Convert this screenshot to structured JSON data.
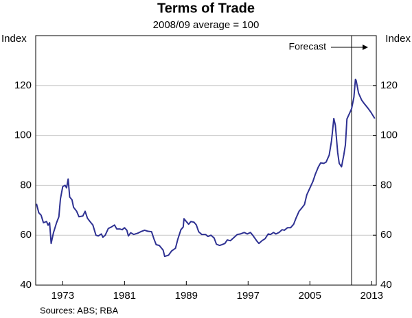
{
  "chart_data": {
    "type": "line",
    "title": "Terms of Trade",
    "subtitle": "2008/09 average = 100",
    "y_label": "Index",
    "y2_label": "Index",
    "source": "Sources: ABS; RBA",
    "annotation": "Forecast",
    "forecast_x": 2010.4,
    "xlim": [
      1969.5,
      2013.6
    ],
    "xticks": [
      1973,
      1981,
      1989,
      1997,
      2005,
      2013
    ],
    "ylim": [
      40,
      140
    ],
    "yticks": [
      40,
      60,
      80,
      100,
      120
    ],
    "y2lim": [
      40,
      140
    ],
    "y2ticks": [
      40,
      60,
      80,
      100,
      120
    ],
    "grid": true,
    "x": [
      1969.6,
      1969.9,
      1970.2,
      1970.5,
      1970.9,
      1971.1,
      1971.3,
      1971.5,
      1971.8,
      1972.2,
      1972.5,
      1972.7,
      1973.0,
      1973.3,
      1973.5,
      1973.7,
      1973.9,
      1974.2,
      1974.4,
      1974.8,
      1975.1,
      1975.6,
      1975.9,
      1976.2,
      1976.6,
      1976.9,
      1977.3,
      1977.6,
      1978.0,
      1978.2,
      1978.5,
      1978.9,
      1979.3,
      1979.7,
      1980.0,
      1980.4,
      1980.7,
      1981.0,
      1981.3,
      1981.5,
      1981.8,
      1982.2,
      1982.7,
      1983.1,
      1983.6,
      1984.0,
      1984.5,
      1984.8,
      1985.1,
      1985.5,
      1986.0,
      1986.2,
      1986.7,
      1987.1,
      1987.6,
      1987.9,
      1988.3,
      1988.6,
      1988.7,
      1989.0,
      1989.3,
      1989.6,
      1990.0,
      1990.3,
      1990.6,
      1991.0,
      1991.5,
      1991.8,
      1992.2,
      1992.6,
      1992.9,
      1993.3,
      1993.6,
      1994.0,
      1994.3,
      1994.7,
      1995.1,
      1995.6,
      1996.0,
      1996.5,
      1996.9,
      1997.3,
      1997.6,
      1998.1,
      1998.4,
      1998.8,
      1999.2,
      1999.6,
      1999.9,
      2000.3,
      2000.6,
      2001.0,
      2001.4,
      2001.7,
      2002.1,
      2002.5,
      2002.9,
      2003.2,
      2003.6,
      2003.9,
      2004.3,
      2004.6,
      2005.0,
      2005.4,
      2005.7,
      2006.1,
      2006.4,
      2006.8,
      2007.1,
      2007.5,
      2007.8,
      2008.1,
      2008.3,
      2008.6,
      2008.8,
      2009.1,
      2009.4,
      2009.6,
      2009.8,
      2010.2,
      2010.4,
      2010.7,
      2010.9,
      2011.0,
      2011.3,
      2011.7,
      2012.0,
      2012.5,
      2012.9,
      2013.4
    ],
    "series": [
      {
        "color": "#2e3192",
        "values": [
          72.6,
          69,
          68,
          65,
          65.5,
          64,
          65,
          56.7,
          61,
          65,
          67.4,
          74.5,
          79.5,
          80,
          79,
          82.5,
          75.3,
          74.2,
          71.2,
          69.6,
          67.4,
          67.7,
          69.6,
          66.8,
          65.2,
          64.1,
          60,
          59.7,
          60.5,
          59.2,
          60,
          62.7,
          63.3,
          64.1,
          62.5,
          62.5,
          62.2,
          63,
          62,
          59.7,
          61,
          60.3,
          60.8,
          61.4,
          62,
          61.6,
          61.4,
          58.6,
          56.2,
          55.9,
          54,
          51.5,
          52,
          53.7,
          54.8,
          58.4,
          62.2,
          63.3,
          66.6,
          65.5,
          64.4,
          65.5,
          65.2,
          64.1,
          61.4,
          60.3,
          60.3,
          59.5,
          60,
          58.9,
          56.4,
          55.9,
          56.2,
          56.7,
          58.1,
          57.8,
          58.9,
          60.3,
          60.5,
          61.1,
          60.5,
          61.1,
          60,
          57.8,
          56.7,
          57.8,
          58.6,
          60.5,
          60.3,
          61.1,
          60.5,
          61.1,
          62.2,
          62,
          63,
          63,
          64.4,
          66.8,
          69.6,
          70.7,
          72.3,
          76.2,
          78.9,
          81.6,
          84.4,
          87.4,
          89,
          88.8,
          89.3,
          92.1,
          97.8,
          106.8,
          104.1,
          93.2,
          88.8,
          87.4,
          92.3,
          96.2,
          106.6,
          109.3,
          110.7,
          115.3,
          122.5,
          121.9,
          117,
          114.2,
          112.9,
          111,
          109.3,
          106.8
        ]
      }
    ]
  }
}
